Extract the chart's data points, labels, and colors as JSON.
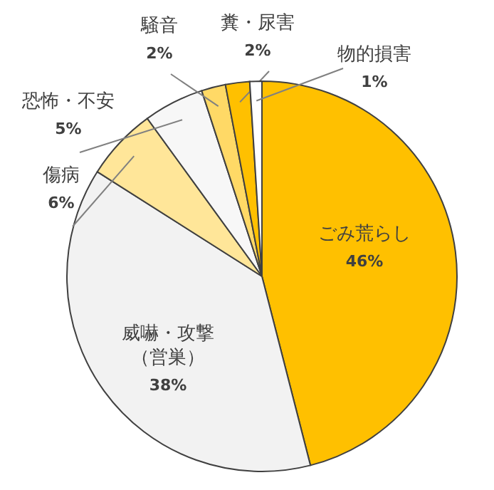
{
  "chart_data": {
    "type": "pie",
    "categories": [
      "ごみ荒らし",
      "威嚇・攻撃（営巣）",
      "傷病",
      "恐怖・不安",
      "騒音",
      "糞・尿害",
      "物的損害"
    ],
    "values": [
      46,
      38,
      6,
      5,
      2,
      2,
      1
    ],
    "value_labels": [
      "46%",
      "38%",
      "6%",
      "5%",
      "2%",
      "2%",
      "1%"
    ],
    "colors": [
      "#ffc000",
      "#f2f2f2",
      "#ffe699",
      "#f7f7f7",
      "#ffd966",
      "#ffc000",
      "#ffffff"
    ]
  }
}
